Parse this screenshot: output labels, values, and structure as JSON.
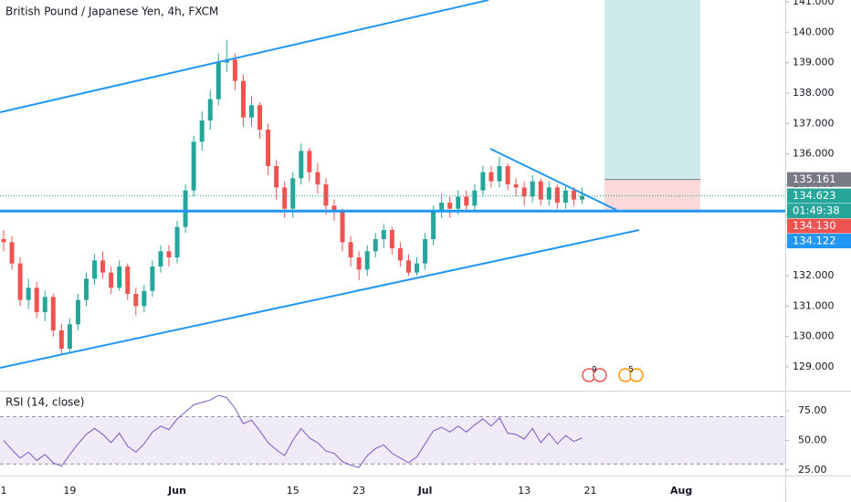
{
  "title": "British Pound / Japanese Yen, 4h, FXCM",
  "chart_data": [
    {
      "type": "candlestick",
      "categories": [
        "1",
        null,
        null,
        null,
        null,
        null,
        null,
        null,
        "19",
        null,
        null,
        null,
        null,
        null,
        null,
        null,
        null,
        null,
        null,
        null,
        null,
        "Jun",
        null,
        null,
        null,
        null,
        null,
        null,
        null,
        null,
        null,
        null,
        null,
        null,
        null,
        "15",
        null,
        null,
        null,
        null,
        null,
        null,
        null,
        "23",
        null,
        null,
        null,
        null,
        null,
        null,
        null,
        "Jul",
        null,
        null,
        null,
        null,
        null,
        null,
        null,
        null,
        null,
        null,
        null,
        "13",
        null,
        null,
        null,
        null,
        null,
        null,
        null,
        "21",
        null,
        null,
        null,
        null,
        null,
        null,
        null,
        null,
        null,
        null,
        "Aug",
        null,
        null,
        null,
        null,
        null,
        null,
        null,
        null,
        null,
        null,
        null
      ],
      "open": [
        133.2,
        133.1,
        132.4,
        131.2,
        131.6,
        130.8,
        131.3,
        130.2,
        129.6,
        130.4,
        131.2,
        131.9,
        132.5,
        132.1,
        131.6,
        132.3,
        131.4,
        131.0,
        131.5,
        132.3,
        132.8,
        132.6,
        133.6,
        134.8,
        136.4,
        137.1,
        137.8,
        139.0,
        139.1,
        138.4,
        137.2,
        137.6,
        136.8,
        135.6,
        134.9,
        134.2,
        135.2,
        136.1,
        135.4,
        135.0,
        134.3,
        134.1,
        133.1,
        132.6,
        132.2,
        132.8,
        133.2,
        133.5,
        132.9,
        132.5,
        132.1,
        132.4,
        133.2,
        134.1,
        134.4,
        134.2,
        134.6,
        134.3,
        134.8,
        135.4,
        135.1,
        135.6,
        135.0,
        134.9,
        134.6,
        135.1,
        134.5,
        134.9,
        134.4,
        134.8,
        134.5,
        null,
        null,
        null,
        null,
        null,
        null,
        null,
        null,
        null,
        null,
        null,
        null,
        null,
        null,
        null,
        null,
        null,
        null,
        null,
        null,
        null,
        null,
        null
      ],
      "high": [
        133.5,
        133.3,
        132.6,
        131.9,
        131.8,
        131.5,
        131.4,
        130.4,
        130.6,
        131.4,
        132.1,
        132.7,
        132.8,
        132.3,
        132.5,
        132.4,
        131.6,
        131.7,
        132.5,
        133.0,
        133.0,
        133.8,
        135.0,
        136.6,
        137.4,
        138.1,
        139.3,
        139.75,
        139.3,
        138.6,
        137.9,
        137.7,
        137.0,
        135.8,
        135.1,
        135.4,
        136.35,
        136.2,
        135.7,
        135.2,
        134.5,
        134.2,
        133.3,
        132.8,
        133.0,
        133.4,
        133.7,
        133.6,
        133.1,
        132.7,
        132.6,
        133.4,
        134.3,
        134.7,
        134.6,
        134.8,
        134.8,
        135.0,
        135.6,
        135.6,
        135.9,
        135.7,
        135.2,
        135.1,
        135.3,
        135.2,
        135.1,
        135.0,
        135.0,
        134.9,
        134.9,
        null,
        null,
        null,
        null,
        null,
        null,
        null,
        null,
        null,
        null,
        null,
        null,
        null,
        null,
        null,
        null,
        null,
        null,
        null,
        null,
        null,
        null,
        null
      ],
      "low": [
        132.8,
        132.2,
        131.0,
        130.9,
        130.6,
        130.5,
        130.0,
        129.4,
        129.5,
        130.2,
        131.0,
        131.7,
        131.9,
        131.4,
        131.5,
        131.2,
        130.7,
        130.8,
        131.3,
        132.1,
        132.3,
        132.4,
        133.4,
        134.6,
        136.1,
        136.8,
        137.6,
        138.7,
        138.1,
        136.9,
        136.9,
        136.5,
        135.3,
        134.5,
        133.9,
        133.9,
        135.0,
        135.1,
        134.7,
        134.0,
        133.8,
        132.8,
        132.3,
        131.85,
        132.0,
        132.6,
        132.9,
        132.7,
        132.3,
        132.0,
        132.0,
        132.2,
        133.0,
        133.9,
        133.9,
        134.0,
        134.1,
        134.1,
        134.6,
        134.9,
        134.9,
        134.8,
        134.6,
        134.3,
        134.4,
        134.3,
        134.3,
        134.2,
        134.2,
        134.3,
        134.35,
        null,
        null,
        null,
        null,
        null,
        null,
        null,
        null,
        null,
        null,
        null,
        null,
        null,
        null,
        null,
        null,
        null,
        null,
        null,
        null,
        null,
        null,
        null
      ],
      "close": [
        133.1,
        132.4,
        131.2,
        131.6,
        130.8,
        131.3,
        130.2,
        129.6,
        130.4,
        131.2,
        131.9,
        132.5,
        132.1,
        131.6,
        132.3,
        131.4,
        131.0,
        131.5,
        132.3,
        132.8,
        132.6,
        133.6,
        134.8,
        136.4,
        137.1,
        137.8,
        139.0,
        139.1,
        138.4,
        137.2,
        137.6,
        136.8,
        135.6,
        134.9,
        134.2,
        135.2,
        136.1,
        135.4,
        135.0,
        134.3,
        134.1,
        133.1,
        132.6,
        132.2,
        132.8,
        133.2,
        133.5,
        132.9,
        132.5,
        132.1,
        132.4,
        133.2,
        134.1,
        134.4,
        134.2,
        134.6,
        134.3,
        134.8,
        135.4,
        135.1,
        135.6,
        135.0,
        134.9,
        134.6,
        135.1,
        134.5,
        134.9,
        134.4,
        134.8,
        134.5,
        134.62,
        null,
        null,
        null,
        null,
        null,
        null,
        null,
        null,
        null,
        null,
        null,
        null,
        null,
        null,
        null,
        null,
        null,
        null,
        null,
        null,
        null,
        null,
        null
      ],
      "up_color": "#26a69a",
      "down_color": "#ef5350",
      "ylim": [
        128.22,
        141.06
      ],
      "yticks": [
        {
          "value": 129,
          "label": "129.000"
        },
        {
          "value": 130,
          "label": "130.000"
        },
        {
          "value": 131,
          "label": "131.000"
        },
        {
          "value": 132,
          "label": "132.000"
        },
        {
          "value": 133,
          "label": "133.000"
        },
        {
          "value": 134,
          "label": "134.000"
        },
        {
          "value": 135,
          "label": "135.000"
        },
        {
          "value": 136,
          "label": "136.000"
        },
        {
          "value": 137,
          "label": "137.000"
        },
        {
          "value": 138,
          "label": "138.000"
        },
        {
          "value": 139,
          "label": "139.000"
        },
        {
          "value": 140,
          "label": "140.000"
        },
        {
          "value": 141,
          "label": "141.000"
        }
      ],
      "hline": {
        "value": 134.122,
        "color": "#2196f3"
      },
      "position": {
        "entry": 135.161,
        "stop": 134.13,
        "target": 141.2,
        "profit_color": "#26a69a",
        "loss_color": "#ef5350"
      },
      "price_labels": [
        {
          "value": 135.161,
          "label": "135.161",
          "color": "#787b86"
        },
        {
          "value": 134.623,
          "label": "134.623",
          "color": "#26a69a"
        },
        {
          "label": "01:49:38",
          "color": "#26a69a"
        },
        {
          "value": 134.13,
          "label": "134.130",
          "color": "#ef5350"
        },
        {
          "value": 134.122,
          "label": "134.122",
          "color": "#2196f3"
        }
      ],
      "events": [
        "9",
        "5"
      ]
    },
    {
      "type": "line",
      "title": "RSI (14, close)",
      "color": "#7e57c2",
      "values": [
        50,
        42,
        35,
        40,
        33,
        38,
        31,
        28,
        38,
        47,
        55,
        60,
        55,
        48,
        56,
        45,
        40,
        47,
        57,
        62,
        59,
        68,
        74,
        80,
        82,
        84,
        88,
        86,
        77,
        64,
        67,
        58,
        48,
        42,
        37,
        50,
        60,
        52,
        48,
        41,
        39,
        32,
        29,
        27,
        37,
        43,
        46,
        39,
        35,
        31,
        36,
        47,
        58,
        61,
        57,
        62,
        57,
        63,
        68,
        62,
        69,
        56,
        55,
        51,
        60,
        48,
        56,
        47,
        54,
        49,
        52,
        null,
        null,
        null,
        null,
        null,
        null,
        null,
        null,
        null,
        null,
        null,
        null,
        null,
        null,
        null,
        null,
        null,
        null,
        null,
        null,
        null,
        null,
        null
      ],
      "band": [
        30,
        70
      ],
      "ylim": [
        21,
        90.4
      ],
      "yticks": [
        {
          "value": 25,
          "label": "25.00"
        },
        {
          "value": 50,
          "label": "50.00"
        },
        {
          "value": 75,
          "label": "75.00"
        }
      ]
    }
  ]
}
